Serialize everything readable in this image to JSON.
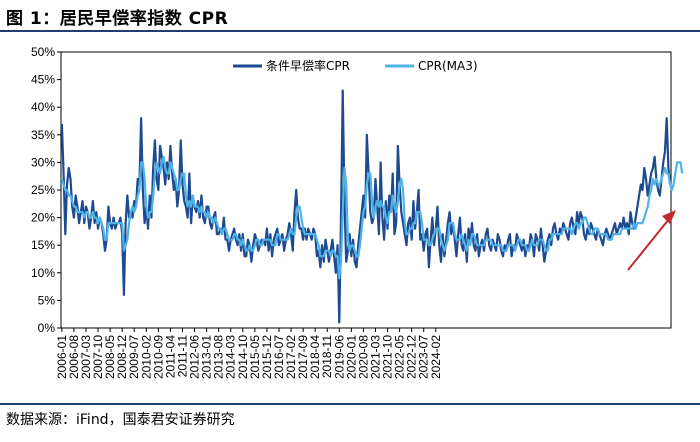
{
  "header": {
    "title": "图 1：居民早偿率指数 CPR"
  },
  "footer": {
    "source": "数据来源：iFind，国泰君安证券研究"
  },
  "colors": {
    "dark": "#1e4b8f",
    "light": "#4fb3e8",
    "arrow": "#c0282c",
    "rule": "#1f3f73"
  },
  "chart_data": {
    "type": "line",
    "title": "",
    "xlabel": "",
    "ylabel": "",
    "ylim": [
      0,
      50
    ],
    "yticks": [
      "0%",
      "5%",
      "10%",
      "15%",
      "20%",
      "25%",
      "30%",
      "35%",
      "40%",
      "45%",
      "50%"
    ],
    "x_start": "2006-01",
    "xticks": [
      "2006-01",
      "2006-08",
      "2007-03",
      "2007-10",
      "2008-05",
      "2008-12",
      "2009-07",
      "2010-02",
      "2010-09",
      "2011-04",
      "2011-11",
      "2012-06",
      "2013-01",
      "2013-08",
      "2014-03",
      "2014-10",
      "2015-05",
      "2015-12",
      "2016-07",
      "2017-02",
      "2017-09",
      "2018-04",
      "2018-11",
      "2019-06",
      "2020-01",
      "2020-08",
      "2021-03",
      "2021-10",
      "2022-05",
      "2022-12",
      "2023-07",
      "2024-02"
    ],
    "legend": {
      "position": "top-center"
    },
    "annotation": "upward-trend-arrow",
    "series": [
      {
        "name": "条件早偿率CPR",
        "values": [
          37,
          28,
          17,
          26,
          29,
          27,
          22,
          20,
          24,
          22,
          19,
          21,
          23,
          19,
          22,
          21,
          18,
          20,
          23,
          19,
          21,
          18,
          20,
          19,
          17,
          14,
          16,
          22,
          19,
          18,
          20,
          18,
          19,
          19,
          20,
          17,
          6,
          19,
          24,
          20,
          21,
          20,
          23,
          22,
          27,
          26,
          38,
          25,
          19,
          22,
          18,
          24,
          20,
          29,
          34,
          27,
          25,
          33,
          31,
          29,
          26,
          30,
          27,
          33,
          28,
          25,
          27,
          22,
          25,
          34,
          26,
          23,
          22,
          20,
          28,
          19,
          24,
          22,
          21,
          23,
          20,
          24,
          20,
          19,
          22,
          22,
          19,
          18,
          20,
          21,
          17,
          17,
          18,
          17,
          20,
          16,
          16,
          14,
          16,
          17,
          18,
          16,
          15,
          17,
          14,
          17,
          13,
          13,
          16,
          15,
          12,
          15,
          17,
          16,
          14,
          15,
          16,
          16,
          15,
          18,
          14,
          17,
          13,
          16,
          17,
          18,
          15,
          16,
          17,
          14,
          16,
          17,
          19,
          17,
          14,
          21,
          25,
          20,
          18,
          18,
          16,
          18,
          16,
          18,
          17,
          16,
          18,
          17,
          13,
          14,
          11,
          15,
          12,
          16,
          14,
          12,
          14,
          16,
          13,
          10,
          15,
          1,
          20,
          43,
          23,
          12,
          14,
          17,
          13,
          16,
          12,
          11,
          15,
          18,
          21,
          24,
          20,
          35,
          28,
          21,
          19,
          20,
          27,
          22,
          17,
          30,
          20,
          16,
          23,
          18,
          24,
          21,
          28,
          17,
          19,
          33,
          26,
          21,
          19,
          17,
          15,
          19,
          20,
          16,
          23,
          18,
          21,
          25,
          16,
          17,
          14,
          17,
          18,
          11,
          16,
          20,
          15,
          18,
          22,
          15,
          12,
          17,
          13,
          16,
          19,
          21,
          17,
          19,
          16,
          13,
          17,
          20,
          15,
          14,
          17,
          12,
          18,
          16,
          19,
          15,
          14,
          17,
          13,
          15,
          16,
          14,
          17,
          18,
          15,
          14,
          16,
          15,
          14,
          17,
          16,
          14,
          13,
          15,
          14,
          16,
          17,
          13,
          15,
          14,
          17,
          16,
          15,
          14,
          16,
          13,
          15,
          14,
          17,
          16,
          13,
          17,
          16,
          14,
          18,
          15,
          12,
          14,
          16,
          17,
          15,
          18,
          19,
          17,
          16,
          18,
          17,
          19,
          18,
          17,
          16,
          19,
          20,
          18,
          17,
          21,
          19,
          21,
          20,
          17,
          16,
          18,
          17,
          19,
          18,
          17,
          16,
          18,
          17,
          16,
          15,
          17,
          18,
          17,
          16,
          17,
          18,
          19,
          17,
          18,
          19,
          18,
          20,
          18,
          19,
          17,
          21,
          19,
          18,
          20,
          22,
          24,
          26,
          25,
          29,
          27,
          24,
          26,
          28,
          29,
          31,
          27,
          25,
          24,
          27,
          30,
          32,
          38,
          29,
          26
        ]
      },
      {
        "name": "CPR(MA3)",
        "values": [
          27,
          26,
          25,
          25,
          24,
          24,
          23,
          22,
          22,
          21,
          21,
          21,
          21,
          20,
          21,
          21,
          20,
          20,
          21,
          20,
          20,
          19,
          20,
          19,
          18,
          16,
          16,
          19,
          19,
          19,
          19,
          19,
          19,
          19,
          19,
          19,
          14,
          15,
          16,
          19,
          21,
          22,
          21,
          22,
          24,
          25,
          30,
          30,
          27,
          22,
          20,
          21,
          21,
          24,
          28,
          30,
          29,
          28,
          30,
          31,
          29,
          28,
          28,
          30,
          29,
          28,
          27,
          25,
          25,
          27,
          28,
          28,
          24,
          22,
          23,
          22,
          24,
          22,
          22,
          22,
          21,
          22,
          21,
          21,
          20,
          21,
          20,
          20,
          19,
          20,
          19,
          18,
          18,
          17,
          18,
          18,
          17,
          16,
          16,
          16,
          17,
          17,
          16,
          16,
          15,
          16,
          15,
          14,
          14,
          15,
          14,
          14,
          15,
          16,
          16,
          15,
          15,
          16,
          16,
          16,
          16,
          16,
          15,
          15,
          15,
          17,
          17,
          16,
          16,
          16,
          16,
          16,
          17,
          18,
          17,
          17,
          20,
          22,
          22,
          20,
          18,
          17,
          17,
          17,
          17,
          17,
          17,
          17,
          16,
          15,
          13,
          13,
          13,
          14,
          14,
          14,
          13,
          14,
          14,
          13,
          13,
          9,
          12,
          21,
          29,
          26,
          16,
          14,
          15,
          15,
          14,
          13,
          13,
          15,
          18,
          21,
          22,
          26,
          28,
          28,
          23,
          20,
          22,
          23,
          22,
          23,
          22,
          22,
          20,
          19,
          21,
          21,
          24,
          22,
          21,
          23,
          26,
          27,
          25,
          19,
          17,
          17,
          18,
          18,
          19,
          19,
          21,
          21,
          21,
          19,
          16,
          16,
          16,
          15,
          15,
          16,
          17,
          18,
          18,
          18,
          16,
          15,
          14,
          15,
          16,
          19,
          19,
          19,
          17,
          16,
          16,
          16,
          17,
          16,
          15,
          14,
          16,
          15,
          17,
          17,
          16,
          15,
          15,
          15,
          15,
          15,
          16,
          16,
          16,
          16,
          15,
          15,
          15,
          15,
          15,
          15,
          14,
          14,
          14,
          15,
          15,
          15,
          15,
          14,
          15,
          16,
          16,
          15,
          15,
          15,
          14,
          14,
          15,
          16,
          15,
          15,
          15,
          16,
          16,
          16,
          15,
          14,
          14,
          16,
          16,
          17,
          17,
          17,
          17,
          17,
          17,
          18,
          18,
          18,
          18,
          18,
          17,
          18,
          19,
          19,
          18,
          19,
          19,
          20,
          20,
          19,
          18,
          17,
          17,
          18,
          18,
          18,
          17,
          17,
          17,
          17,
          17,
          16,
          16,
          16,
          17,
          17,
          17,
          17,
          17,
          18,
          18,
          18,
          18,
          18,
          18,
          18,
          19,
          18,
          19,
          19,
          19,
          19,
          20,
          21,
          22,
          24,
          25,
          27,
          26,
          27,
          26,
          26,
          27,
          28,
          29,
          28,
          28,
          26,
          25,
          26,
          28,
          30,
          30,
          30,
          28
        ]
      }
    ]
  }
}
